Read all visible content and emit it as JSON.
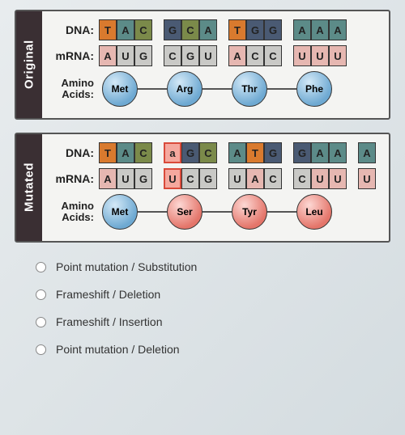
{
  "labels": {
    "dna": "DNA:",
    "mrna": "mRNA:",
    "amino1": "Amino",
    "amino2": "Acids:",
    "original": "Original",
    "mutated": "Mutated"
  },
  "colors": {
    "orange": "#d97a2e",
    "teal": "#5c8b88",
    "olive": "#7b8a4a",
    "navy": "#4a5a73",
    "pink": "#e6b7b1",
    "pinkHL": "#f5a89e",
    "grey": "#c9c9c6"
  },
  "original": {
    "dna": [
      [
        {
          "l": "T",
          "c": "orange"
        },
        {
          "l": "A",
          "c": "teal"
        },
        {
          "l": "C",
          "c": "olive"
        }
      ],
      [
        {
          "l": "G",
          "c": "navy"
        },
        {
          "l": "C",
          "c": "olive"
        },
        {
          "l": "A",
          "c": "teal"
        }
      ],
      [
        {
          "l": "T",
          "c": "orange"
        },
        {
          "l": "G",
          "c": "navy"
        },
        {
          "l": "G",
          "c": "navy"
        }
      ],
      [
        {
          "l": "A",
          "c": "teal"
        },
        {
          "l": "A",
          "c": "teal"
        },
        {
          "l": "A",
          "c": "teal"
        }
      ]
    ],
    "mrna": [
      [
        {
          "l": "A",
          "c": "pink"
        },
        {
          "l": "U",
          "c": "grey"
        },
        {
          "l": "G",
          "c": "grey"
        }
      ],
      [
        {
          "l": "C",
          "c": "grey"
        },
        {
          "l": "G",
          "c": "grey"
        },
        {
          "l": "U",
          "c": "grey"
        }
      ],
      [
        {
          "l": "A",
          "c": "pink"
        },
        {
          "l": "C",
          "c": "grey"
        },
        {
          "l": "C",
          "c": "grey"
        }
      ],
      [
        {
          "l": "U",
          "c": "pink"
        },
        {
          "l": "U",
          "c": "pink"
        },
        {
          "l": "U",
          "c": "pink"
        }
      ]
    ],
    "amino": [
      {
        "name": "Met",
        "c": "blue"
      },
      {
        "name": "Arg",
        "c": "blue"
      },
      {
        "name": "Thr",
        "c": "blue"
      },
      {
        "name": "Phe",
        "c": "blue"
      }
    ]
  },
  "mutated": {
    "dna": [
      [
        {
          "l": "T",
          "c": "orange"
        },
        {
          "l": "A",
          "c": "teal"
        },
        {
          "l": "C",
          "c": "olive"
        }
      ],
      [
        {
          "l": "a",
          "c": "pinkHL"
        },
        {
          "l": "G",
          "c": "navy"
        },
        {
          "l": "C",
          "c": "olive"
        }
      ],
      [
        {
          "l": "A",
          "c": "teal"
        },
        {
          "l": "T",
          "c": "orange"
        },
        {
          "l": "G",
          "c": "navy"
        }
      ],
      [
        {
          "l": "G",
          "c": "navy"
        },
        {
          "l": "A",
          "c": "teal"
        },
        {
          "l": "A",
          "c": "teal"
        }
      ],
      [
        {
          "l": "A",
          "c": "teal"
        }
      ]
    ],
    "mrna": [
      [
        {
          "l": "A",
          "c": "pink"
        },
        {
          "l": "U",
          "c": "grey"
        },
        {
          "l": "G",
          "c": "grey"
        }
      ],
      [
        {
          "l": "U",
          "c": "pinkHL"
        },
        {
          "l": "C",
          "c": "grey"
        },
        {
          "l": "G",
          "c": "grey"
        }
      ],
      [
        {
          "l": "U",
          "c": "grey"
        },
        {
          "l": "A",
          "c": "pink"
        },
        {
          "l": "C",
          "c": "grey"
        }
      ],
      [
        {
          "l": "C",
          "c": "grey"
        },
        {
          "l": "U",
          "c": "pink"
        },
        {
          "l": "U",
          "c": "pink"
        }
      ],
      [
        {
          "l": "U",
          "c": "pink"
        }
      ]
    ],
    "amino": [
      {
        "name": "Met",
        "c": "blue"
      },
      {
        "name": "Ser",
        "c": "red"
      },
      {
        "name": "Tyr",
        "c": "red"
      },
      {
        "name": "Leu",
        "c": "red"
      }
    ]
  },
  "options": [
    "Point mutation / Substitution",
    "Frameshift / Deletion",
    "Frameshift / Insertion",
    "Point mutation / Deletion"
  ]
}
